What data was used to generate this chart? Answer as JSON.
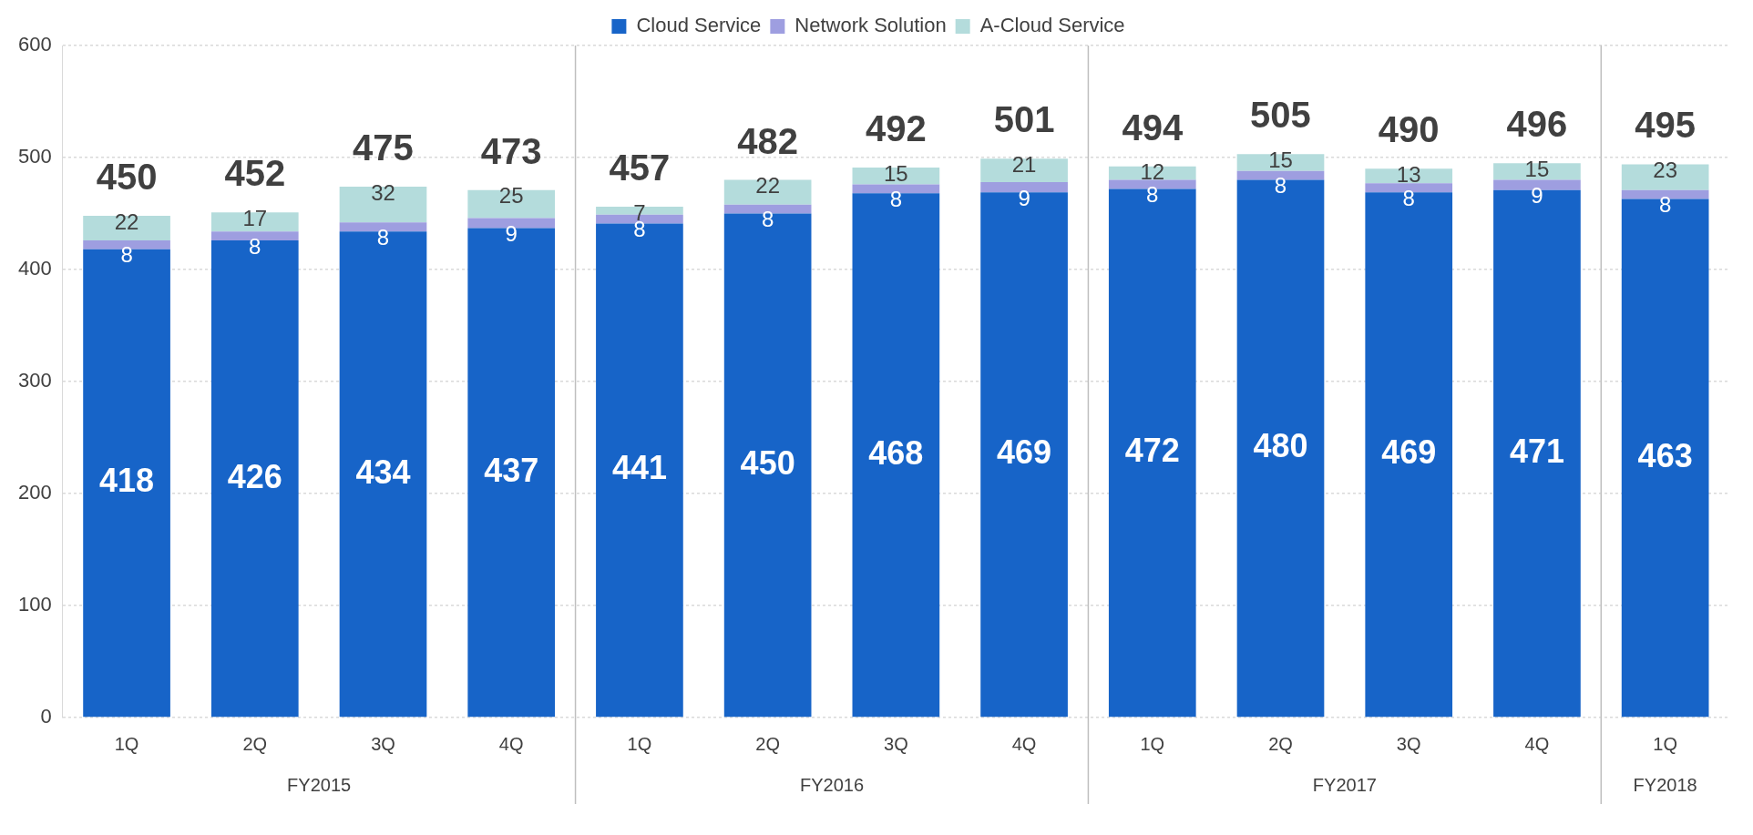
{
  "chart_data": {
    "type": "bar",
    "stacked": true,
    "categories": [
      "1Q",
      "2Q",
      "3Q",
      "4Q",
      "1Q",
      "2Q",
      "3Q",
      "4Q",
      "1Q",
      "2Q",
      "3Q",
      "4Q",
      "1Q"
    ],
    "series": [
      {
        "name": "Cloud Service",
        "color": "#1764c8",
        "values": [
          418,
          426,
          434,
          437,
          441,
          450,
          468,
          469,
          472,
          480,
          469,
          471,
          463
        ]
      },
      {
        "name": "Network Solution",
        "color": "#9e9ee0",
        "values": [
          8,
          8,
          8,
          9,
          8,
          8,
          8,
          9,
          8,
          8,
          8,
          9,
          8
        ]
      },
      {
        "name": "A-Cloud Service",
        "color": "#b4dcdc",
        "values": [
          22,
          17,
          32,
          25,
          7,
          22,
          15,
          21,
          12,
          15,
          13,
          15,
          23
        ]
      }
    ],
    "totals": [
      "450",
      "452",
      "475",
      "473",
      "457",
      "482",
      "492",
      "501",
      "494",
      "505",
      "490",
      "496",
      "495"
    ],
    "data_labels": true,
    "ylim": [
      0,
      600
    ],
    "yticks": [
      0,
      100,
      200,
      300,
      400,
      500,
      600
    ],
    "grid": "y",
    "legend": "top",
    "annotations": [
      "FY2015",
      "FY2016",
      "FY2017",
      "FY2018"
    ]
  }
}
